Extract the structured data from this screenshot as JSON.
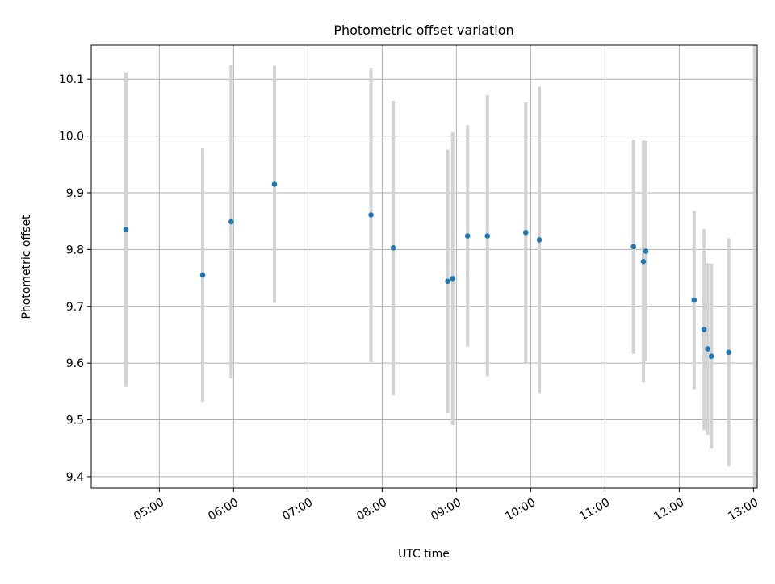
{
  "chart_data": {
    "type": "scatter",
    "title": "Photometric offset variation",
    "xlabel": "UTC time",
    "ylabel": "Photometric offset",
    "x_axis_type": "time",
    "xlim": [
      "04:05",
      "13:03"
    ],
    "ylim": [
      9.38,
      10.16
    ],
    "xticks": [
      "05:00",
      "06:00",
      "07:00",
      "08:00",
      "09:00",
      "10:00",
      "11:00",
      "12:00",
      "13:00"
    ],
    "yticks": [
      9.4,
      9.5,
      9.6,
      9.7,
      9.8,
      9.9,
      10.0,
      10.1
    ],
    "ytick_labels": [
      "9.4",
      "9.5",
      "9.6",
      "9.7",
      "9.8",
      "9.9",
      "10.0",
      "10.1"
    ],
    "grid": true,
    "marker_color": "#1f77b4",
    "errorbar_color": "#d3d3d3",
    "points": [
      {
        "x": "04:33",
        "y": 9.835,
        "yerr_low": 9.558,
        "yerr_high": 10.112
      },
      {
        "x": "05:35",
        "y": 9.755,
        "yerr_low": 9.532,
        "yerr_high": 9.978
      },
      {
        "x": "05:58",
        "y": 9.849,
        "yerr_low": 9.573,
        "yerr_high": 10.125
      },
      {
        "x": "06:33",
        "y": 9.915,
        "yerr_low": 9.706,
        "yerr_high": 10.124
      },
      {
        "x": "07:51",
        "y": 9.861,
        "yerr_low": 9.602,
        "yerr_high": 10.12
      },
      {
        "x": "08:09",
        "y": 9.803,
        "yerr_low": 9.543,
        "yerr_high": 10.062
      },
      {
        "x": "08:53",
        "y": 9.744,
        "yerr_low": 9.512,
        "yerr_high": 9.976
      },
      {
        "x": "08:57",
        "y": 9.749,
        "yerr_low": 9.491,
        "yerr_high": 10.007
      },
      {
        "x": "09:09",
        "y": 9.824,
        "yerr_low": 9.629,
        "yerr_high": 10.019
      },
      {
        "x": "09:25",
        "y": 9.824,
        "yerr_low": 9.577,
        "yerr_high": 10.072
      },
      {
        "x": "09:56",
        "y": 9.83,
        "yerr_low": 9.601,
        "yerr_high": 10.059
      },
      {
        "x": "10:07",
        "y": 9.817,
        "yerr_low": 9.547,
        "yerr_high": 10.087
      },
      {
        "x": "11:23",
        "y": 9.805,
        "yerr_low": 9.616,
        "yerr_high": 9.994
      },
      {
        "x": "11:31",
        "y": 9.779,
        "yerr_low": 9.566,
        "yerr_high": 9.992
      },
      {
        "x": "11:33",
        "y": 9.797,
        "yerr_low": 9.603,
        "yerr_high": 9.991
      },
      {
        "x": "12:12",
        "y": 9.711,
        "yerr_low": 9.554,
        "yerr_high": 9.868
      },
      {
        "x": "12:20",
        "y": 9.659,
        "yerr_low": 9.482,
        "yerr_high": 9.836
      },
      {
        "x": "12:23",
        "y": 9.625,
        "yerr_low": 9.474,
        "yerr_high": 9.776
      },
      {
        "x": "12:26",
        "y": 9.612,
        "yerr_low": 9.449,
        "yerr_high": 9.775
      },
      {
        "x": "12:40",
        "y": 9.619,
        "yerr_low": 9.418,
        "yerr_high": 9.82
      },
      {
        "x": "13:01",
        "y": null,
        "yerr_low": 9.379,
        "yerr_high": 10.16
      }
    ]
  }
}
